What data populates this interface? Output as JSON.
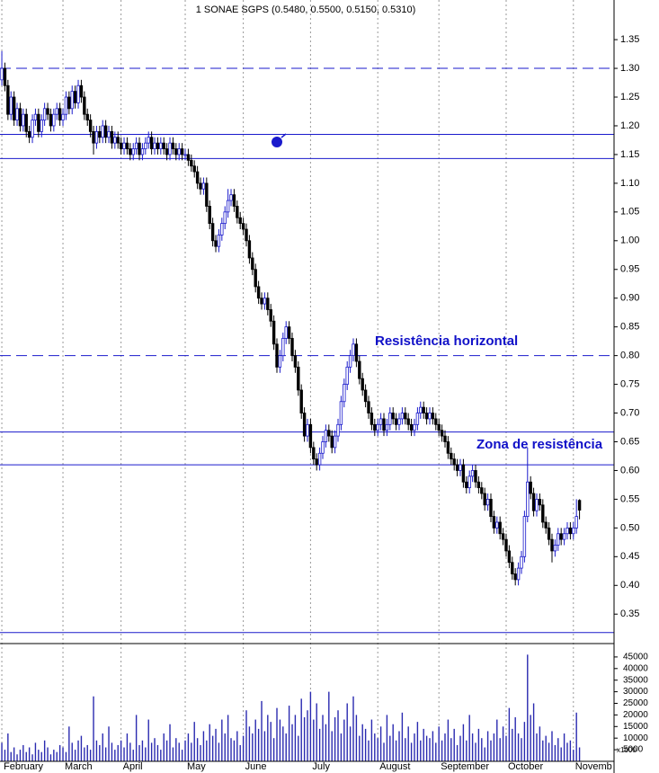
{
  "chart_data": {
    "type": "candlestick",
    "title": "1 SONAE SGPS (0.5480, 0.5500, 0.5150, 0.5310)",
    "annotations": [
      "Resistência horizontal",
      "Zona de resistência"
    ],
    "up_color": "#1a1acc",
    "down_color": "#000000",
    "open": [
      1.28,
      1.3,
      1.27,
      1.22,
      1.25,
      1.21,
      1.23,
      1.2,
      1.22,
      1.19,
      1.18,
      1.21,
      1.22,
      1.19,
      1.21,
      1.23,
      1.22,
      1.2,
      1.22,
      1.23,
      1.21,
      1.22,
      1.25,
      1.23,
      1.26,
      1.24,
      1.27,
      1.25,
      1.22,
      1.21,
      1.19,
      1.17,
      1.19,
      1.18,
      1.2,
      1.18,
      1.19,
      1.17,
      1.18,
      1.17,
      1.16,
      1.17,
      1.16,
      1.15,
      1.16,
      1.17,
      1.15,
      1.16,
      1.17,
      1.18,
      1.16,
      1.17,
      1.16,
      1.17,
      1.16,
      1.15,
      1.17,
      1.16,
      1.15,
      1.16,
      1.15,
      1.15,
      1.14,
      1.13,
      1.12,
      1.1,
      1.09,
      1.1,
      1.06,
      1.03,
      1.0,
      0.99,
      1.01,
      1.03,
      1.05,
      1.07,
      1.08,
      1.06,
      1.04,
      1.03,
      1.02,
      1.0,
      0.97,
      0.95,
      0.92,
      0.9,
      0.89,
      0.9,
      0.88,
      0.86,
      0.82,
      0.78,
      0.8,
      0.83,
      0.85,
      0.83,
      0.8,
      0.78,
      0.74,
      0.7,
      0.66,
      0.68,
      0.64,
      0.62,
      0.61,
      0.63,
      0.65,
      0.67,
      0.66,
      0.64,
      0.66,
      0.68,
      0.72,
      0.75,
      0.78,
      0.8,
      0.82,
      0.79,
      0.76,
      0.74,
      0.72,
      0.7,
      0.68,
      0.67,
      0.68,
      0.69,
      0.67,
      0.68,
      0.7,
      0.69,
      0.68,
      0.69,
      0.7,
      0.69,
      0.68,
      0.67,
      0.68,
      0.7,
      0.71,
      0.7,
      0.69,
      0.7,
      0.69,
      0.68,
      0.67,
      0.66,
      0.65,
      0.63,
      0.62,
      0.61,
      0.6,
      0.61,
      0.58,
      0.57,
      0.59,
      0.6,
      0.58,
      0.57,
      0.56,
      0.54,
      0.55,
      0.52,
      0.5,
      0.51,
      0.49,
      0.48,
      0.46,
      0.44,
      0.42,
      0.41,
      0.43,
      0.45,
      0.52,
      0.58,
      0.56,
      0.53,
      0.55,
      0.54,
      0.51,
      0.5,
      0.48,
      0.46,
      0.47,
      0.49,
      0.48,
      0.49,
      0.5,
      0.49,
      0.5,
      0.548
    ],
    "high": [
      1.33,
      1.31,
      1.28,
      1.26,
      1.26,
      1.24,
      1.24,
      1.23,
      1.23,
      1.2,
      1.22,
      1.23,
      1.23,
      1.22,
      1.24,
      1.24,
      1.23,
      1.23,
      1.24,
      1.24,
      1.23,
      1.26,
      1.26,
      1.27,
      1.27,
      1.28,
      1.28,
      1.26,
      1.23,
      1.22,
      1.2,
      1.2,
      1.2,
      1.21,
      1.21,
      1.2,
      1.2,
      1.19,
      1.19,
      1.18,
      1.18,
      1.18,
      1.17,
      1.17,
      1.18,
      1.18,
      1.17,
      1.18,
      1.19,
      1.19,
      1.18,
      1.18,
      1.18,
      1.18,
      1.17,
      1.18,
      1.18,
      1.17,
      1.17,
      1.17,
      1.16,
      1.16,
      1.15,
      1.14,
      1.13,
      1.11,
      1.11,
      1.11,
      1.07,
      1.04,
      1.01,
      1.02,
      1.04,
      1.06,
      1.09,
      1.09,
      1.09,
      1.07,
      1.05,
      1.04,
      1.03,
      1.01,
      0.98,
      0.96,
      0.93,
      0.91,
      0.91,
      0.91,
      0.89,
      0.87,
      0.83,
      0.81,
      0.84,
      0.86,
      0.86,
      0.84,
      0.81,
      0.79,
      0.75,
      0.71,
      0.69,
      0.69,
      0.65,
      0.63,
      0.64,
      0.66,
      0.68,
      0.68,
      0.67,
      0.67,
      0.69,
      0.73,
      0.76,
      0.79,
      0.81,
      0.83,
      0.83,
      0.8,
      0.77,
      0.75,
      0.73,
      0.71,
      0.69,
      0.69,
      0.7,
      0.7,
      0.69,
      0.71,
      0.71,
      0.7,
      0.7,
      0.71,
      0.71,
      0.7,
      0.69,
      0.69,
      0.71,
      0.72,
      0.72,
      0.71,
      0.71,
      0.71,
      0.7,
      0.69,
      0.68,
      0.67,
      0.66,
      0.64,
      0.63,
      0.62,
      0.62,
      0.62,
      0.59,
      0.6,
      0.61,
      0.61,
      0.59,
      0.58,
      0.57,
      0.56,
      0.56,
      0.53,
      0.52,
      0.52,
      0.5,
      0.49,
      0.47,
      0.45,
      0.43,
      0.44,
      0.46,
      0.53,
      0.64,
      0.59,
      0.57,
      0.56,
      0.56,
      0.55,
      0.52,
      0.51,
      0.49,
      0.48,
      0.5,
      0.5,
      0.5,
      0.51,
      0.51,
      0.51,
      0.55,
      0.55
    ],
    "low": [
      1.27,
      1.26,
      1.21,
      1.21,
      1.2,
      1.2,
      1.19,
      1.19,
      1.18,
      1.17,
      1.17,
      1.2,
      1.18,
      1.18,
      1.2,
      1.21,
      1.19,
      1.19,
      1.21,
      1.2,
      1.2,
      1.21,
      1.22,
      1.22,
      1.23,
      1.23,
      1.24,
      1.21,
      1.2,
      1.18,
      1.15,
      1.16,
      1.17,
      1.17,
      1.17,
      1.17,
      1.16,
      1.16,
      1.16,
      1.15,
      1.15,
      1.15,
      1.14,
      1.14,
      1.15,
      1.14,
      1.14,
      1.15,
      1.16,
      1.15,
      1.15,
      1.15,
      1.15,
      1.15,
      1.14,
      1.14,
      1.15,
      1.14,
      1.14,
      1.14,
      1.14,
      1.13,
      1.12,
      1.11,
      1.09,
      1.08,
      1.08,
      1.05,
      1.02,
      0.99,
      0.98,
      0.98,
      1.0,
      1.02,
      1.04,
      1.06,
      1.05,
      1.03,
      1.02,
      1.01,
      0.99,
      0.96,
      0.94,
      0.91,
      0.89,
      0.88,
      0.88,
      0.87,
      0.85,
      0.81,
      0.77,
      0.77,
      0.79,
      0.82,
      0.82,
      0.79,
      0.77,
      0.73,
      0.69,
      0.65,
      0.65,
      0.63,
      0.61,
      0.6,
      0.6,
      0.62,
      0.64,
      0.65,
      0.63,
      0.63,
      0.65,
      0.67,
      0.71,
      0.74,
      0.77,
      0.79,
      0.78,
      0.75,
      0.73,
      0.71,
      0.69,
      0.67,
      0.66,
      0.66,
      0.67,
      0.66,
      0.66,
      0.67,
      0.68,
      0.67,
      0.67,
      0.68,
      0.68,
      0.67,
      0.66,
      0.66,
      0.67,
      0.69,
      0.69,
      0.68,
      0.68,
      0.68,
      0.67,
      0.66,
      0.65,
      0.64,
      0.62,
      0.61,
      0.6,
      0.59,
      0.59,
      0.57,
      0.56,
      0.56,
      0.58,
      0.57,
      0.56,
      0.55,
      0.53,
      0.53,
      0.51,
      0.49,
      0.49,
      0.48,
      0.47,
      0.45,
      0.43,
      0.41,
      0.4,
      0.4,
      0.42,
      0.44,
      0.51,
      0.55,
      0.52,
      0.52,
      0.53,
      0.5,
      0.49,
      0.47,
      0.44,
      0.45,
      0.46,
      0.47,
      0.47,
      0.48,
      0.48,
      0.48,
      0.49,
      0.515
    ],
    "close": [
      1.3,
      1.27,
      1.22,
      1.25,
      1.21,
      1.23,
      1.2,
      1.22,
      1.19,
      1.18,
      1.21,
      1.22,
      1.19,
      1.21,
      1.23,
      1.22,
      1.2,
      1.22,
      1.23,
      1.21,
      1.22,
      1.25,
      1.23,
      1.26,
      1.24,
      1.27,
      1.25,
      1.22,
      1.21,
      1.19,
      1.17,
      1.19,
      1.18,
      1.2,
      1.18,
      1.19,
      1.17,
      1.18,
      1.17,
      1.16,
      1.17,
      1.16,
      1.15,
      1.16,
      1.17,
      1.15,
      1.16,
      1.17,
      1.18,
      1.16,
      1.17,
      1.16,
      1.17,
      1.16,
      1.15,
      1.17,
      1.16,
      1.15,
      1.16,
      1.15,
      1.15,
      1.14,
      1.13,
      1.12,
      1.1,
      1.09,
      1.1,
      1.06,
      1.03,
      1.0,
      0.99,
      1.01,
      1.03,
      1.05,
      1.07,
      1.08,
      1.06,
      1.04,
      1.03,
      1.02,
      1.0,
      0.97,
      0.95,
      0.92,
      0.9,
      0.89,
      0.9,
      0.88,
      0.86,
      0.82,
      0.78,
      0.8,
      0.83,
      0.85,
      0.83,
      0.8,
      0.78,
      0.74,
      0.7,
      0.66,
      0.68,
      0.64,
      0.62,
      0.61,
      0.63,
      0.65,
      0.67,
      0.66,
      0.64,
      0.66,
      0.68,
      0.72,
      0.75,
      0.78,
      0.8,
      0.82,
      0.79,
      0.76,
      0.74,
      0.72,
      0.7,
      0.68,
      0.67,
      0.68,
      0.69,
      0.67,
      0.68,
      0.7,
      0.69,
      0.68,
      0.69,
      0.7,
      0.69,
      0.68,
      0.67,
      0.68,
      0.7,
      0.71,
      0.7,
      0.69,
      0.7,
      0.69,
      0.68,
      0.67,
      0.66,
      0.65,
      0.63,
      0.62,
      0.61,
      0.6,
      0.61,
      0.58,
      0.57,
      0.59,
      0.6,
      0.58,
      0.57,
      0.56,
      0.54,
      0.55,
      0.52,
      0.5,
      0.51,
      0.49,
      0.48,
      0.46,
      0.44,
      0.42,
      0.41,
      0.43,
      0.45,
      0.52,
      0.58,
      0.56,
      0.53,
      0.55,
      0.54,
      0.51,
      0.5,
      0.48,
      0.46,
      0.47,
      0.49,
      0.48,
      0.49,
      0.5,
      0.49,
      0.5,
      0.52,
      0.531
    ],
    "xlim": [
      -0.6,
      200.3
    ],
    "xticks": [
      {
        "value": 0,
        "label": "February"
      },
      {
        "value": 20,
        "label": "March"
      },
      {
        "value": 39,
        "label": "April"
      },
      {
        "value": 60,
        "label": "May"
      },
      {
        "value": 79,
        "label": "June"
      },
      {
        "value": 101,
        "label": "July"
      },
      {
        "value": 123,
        "label": "August"
      },
      {
        "value": 143,
        "label": "September"
      },
      {
        "value": 165,
        "label": "October"
      },
      {
        "value": 187,
        "label": "Novemb"
      }
    ],
    "ylim": [
      0.305,
      1.419
    ],
    "yticks": [
      0.35,
      {
        "value": 0.4,
        "label": "0.40"
      },
      0.45,
      {
        "value": 0.5,
        "label": "0.50"
      },
      0.55,
      {
        "value": 0.6,
        "label": "0.60"
      },
      0.65,
      {
        "value": 0.7,
        "label": "0.70"
      },
      0.75,
      {
        "value": 0.8,
        "label": "0.80"
      },
      0.85,
      {
        "value": 0.9,
        "label": "0.90"
      },
      0.95,
      {
        "value": 1.0,
        "label": "1.00"
      },
      1.05,
      {
        "value": 1.1,
        "label": "1.10"
      },
      1.15,
      {
        "value": 1.2,
        "label": "1.20"
      },
      1.25,
      {
        "value": 1.3,
        "label": "1.30"
      },
      1.35
    ],
    "grid": "x",
    "hline_color": "#1a1acc",
    "hlines": [
      {
        "value": 1.3,
        "dashed": true
      },
      {
        "value": 1.185,
        "dashed": false
      },
      {
        "value": 1.143,
        "dashed": false
      },
      {
        "value": 0.8,
        "dashed": true
      },
      {
        "value": 0.667,
        "dashed": false
      },
      {
        "value": 0.61,
        "dashed": false
      },
      {
        "value": 0.318,
        "dashed": false
      }
    ],
    "volume": {
      "color": "#2a2ab0",
      "unit_label": "x1000",
      "ylim": [
        0,
        50000
      ],
      "yticks": [
        5000,
        10000,
        15000,
        20000,
        25000,
        30000,
        35000,
        40000,
        45000
      ],
      "values": [
        8000,
        5000,
        12000,
        4000,
        6000,
        3000,
        5000,
        7000,
        4000,
        6000,
        3000,
        8000,
        5000,
        4000,
        9000,
        6000,
        3000,
        5000,
        4000,
        7000,
        6000,
        4000,
        15000,
        8000,
        5000,
        9000,
        11000,
        6000,
        7000,
        5000,
        28000,
        9000,
        7000,
        12000,
        6000,
        15000,
        8000,
        5000,
        7000,
        9000,
        6000,
        12000,
        8000,
        5000,
        20000,
        7000,
        9000,
        6000,
        18000,
        8000,
        10000,
        7000,
        5000,
        12000,
        9000,
        16000,
        6000,
        10000,
        8000,
        5000,
        9000,
        12000,
        8000,
        17000,
        10000,
        7000,
        13000,
        9000,
        16000,
        11000,
        14000,
        8000,
        18000,
        12000,
        20000,
        10000,
        9000,
        13000,
        7000,
        11000,
        22000,
        15000,
        12000,
        18000,
        14000,
        26000,
        13000,
        20000,
        17000,
        10000,
        23000,
        18000,
        15000,
        12000,
        24000,
        16000,
        20000,
        11000,
        27000,
        19000,
        22000,
        30000,
        18000,
        25000,
        14000,
        20000,
        16000,
        30000,
        13000,
        19000,
        22000,
        12000,
        18000,
        25000,
        15000,
        28000,
        20000,
        11000,
        16000,
        14000,
        9000,
        18000,
        12000,
        10000,
        15000,
        8000,
        20000,
        11000,
        16000,
        9000,
        13000,
        21000,
        10000,
        15000,
        8000,
        12000,
        17000,
        9000,
        14000,
        11000,
        10000,
        13000,
        8000,
        15000,
        9000,
        12000,
        18000,
        10000,
        14000,
        7000,
        11000,
        16000,
        9000,
        20000,
        12000,
        8000,
        14000,
        10000,
        6000,
        13000,
        9000,
        12000,
        18000,
        10000,
        15000,
        11000,
        23000,
        14000,
        19000,
        12000,
        10000,
        17000,
        46000,
        20000,
        25000,
        12000,
        15000,
        9000,
        11000,
        8000,
        13000,
        7000,
        10000,
        6000,
        12000,
        8000,
        9000,
        5000,
        21000,
        6000
      ]
    }
  }
}
